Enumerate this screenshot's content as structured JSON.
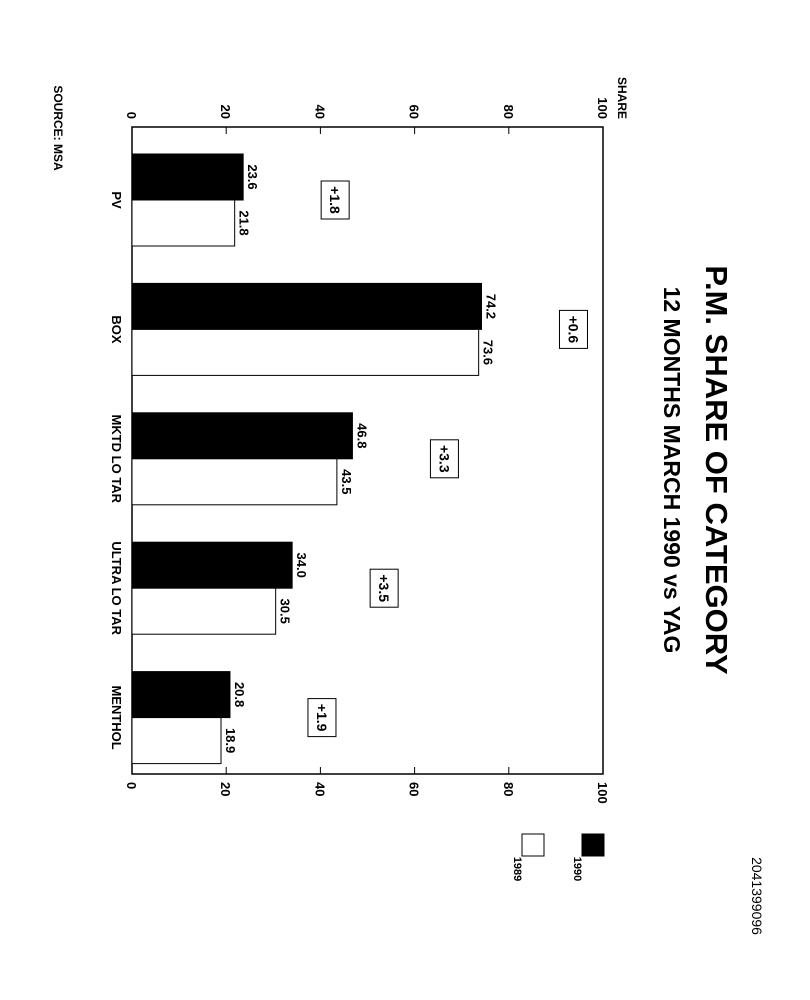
{
  "doc_id": "2041399096",
  "source": "SOURCE: MSA",
  "chart_data": {
    "type": "bar",
    "title": "P.M. SHARE OF CATEGORY",
    "subtitle": "12 MONTHS MARCH 1990 vs YAG",
    "ylabel": "SHARE",
    "ylim": [
      0,
      100
    ],
    "yticks": [
      0,
      20,
      40,
      60,
      80,
      100
    ],
    "categories": [
      "PV",
      "BOX",
      "MKTD LO TAR",
      "ULTRA LO TAR",
      "MENTHOL"
    ],
    "series": [
      {
        "name": "1990",
        "values": [
          23.6,
          74.2,
          46.8,
          34.0,
          20.8
        ],
        "labels": [
          "23.6",
          "74.2",
          "46.8",
          "34.0",
          "20.8"
        ],
        "color": "#000000"
      },
      {
        "name": "1989",
        "values": [
          21.8,
          73.6,
          43.5,
          30.5,
          18.9
        ],
        "labels": [
          "21.8",
          "73.6",
          "43.5",
          "30.5",
          "18.9"
        ],
        "color": "#ffffff"
      }
    ],
    "changes": [
      "+1.8",
      "+0.6",
      "+3.3",
      "+3.5",
      "+1.9"
    ],
    "legend_position": "bottom-right",
    "orientation": "rotated-90"
  }
}
